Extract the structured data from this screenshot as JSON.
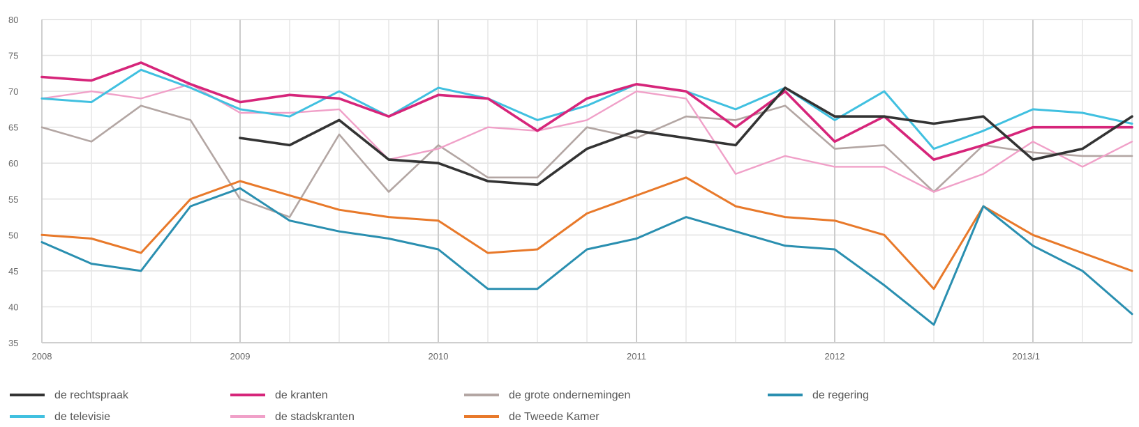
{
  "chart_data": {
    "type": "line",
    "title": "",
    "xlabel": "",
    "ylabel": "",
    "ylim": [
      35,
      80
    ],
    "yticks": [
      35,
      40,
      45,
      50,
      55,
      60,
      65,
      70,
      75,
      80
    ],
    "year_labels": [
      "2008",
      "2009",
      "2010",
      "2011",
      "2012",
      "2013/1"
    ],
    "x": [
      0,
      1,
      2,
      3,
      4,
      5,
      6,
      7,
      8,
      9,
      10,
      11,
      12,
      13,
      14,
      15,
      16,
      17,
      18,
      19,
      20,
      21,
      22
    ],
    "grid": true,
    "legend_position": "bottom",
    "series": [
      {
        "name": "de rechtspraak",
        "color": "#333333",
        "width": 3.6,
        "values": [
          null,
          null,
          null,
          null,
          63.5,
          62.5,
          66.0,
          60.5,
          60.0,
          57.5,
          57.0,
          62.0,
          64.5,
          63.5,
          62.5,
          70.5,
          66.5,
          66.5,
          65.5,
          66.5,
          60.5,
          62.0,
          66.5
        ]
      },
      {
        "name": "de kranten",
        "color": "#d6257a",
        "width": 3.6,
        "values": [
          72.0,
          71.5,
          74.0,
          71.0,
          68.5,
          69.5,
          69.0,
          66.5,
          69.5,
          69.0,
          64.5,
          69.0,
          71.0,
          70.0,
          65.0,
          70.0,
          63.0,
          66.5,
          60.5,
          62.5,
          65.0,
          65.0,
          65.0
        ]
      },
      {
        "name": "de grote ondernemingen",
        "color": "#b3a6a3",
        "width": 2.6,
        "values": [
          65.0,
          63.0,
          68.0,
          66.0,
          55.0,
          52.5,
          64.0,
          56.0,
          62.5,
          58.0,
          58.0,
          65.0,
          63.5,
          66.5,
          66.0,
          68.0,
          62.0,
          62.5,
          56.0,
          62.5,
          61.5,
          61.0,
          61.0
        ]
      },
      {
        "name": "de regering",
        "color": "#2a8fb0",
        "width": 3.0,
        "values": [
          49.0,
          46.0,
          45.0,
          54.0,
          56.5,
          52.0,
          50.5,
          49.5,
          48.0,
          42.5,
          42.5,
          48.0,
          49.5,
          52.5,
          50.5,
          48.5,
          48.0,
          43.0,
          37.5,
          54.0,
          48.5,
          45.0,
          39.0
        ]
      },
      {
        "name": "de televisie",
        "color": "#40c0e0",
        "width": 3.0,
        "values": [
          69.0,
          68.5,
          73.0,
          70.5,
          67.5,
          66.5,
          70.0,
          66.5,
          70.5,
          69.0,
          66.0,
          68.0,
          71.0,
          70.0,
          67.5,
          70.5,
          66.0,
          70.0,
          62.0,
          64.5,
          67.5,
          67.0,
          65.5
        ]
      },
      {
        "name": "de stadskranten",
        "color": "#f0a0c8",
        "width": 2.4,
        "values": [
          69.0,
          70.0,
          69.0,
          71.0,
          67.0,
          67.0,
          67.5,
          60.5,
          62.0,
          65.0,
          64.5,
          66.0,
          70.0,
          69.0,
          58.5,
          61.0,
          59.5,
          59.5,
          56.0,
          58.5,
          63.0,
          59.5,
          63.0
        ]
      },
      {
        "name": "de Tweede Kamer",
        "color": "#e8792a",
        "width": 3.0,
        "values": [
          50.0,
          49.5,
          47.5,
          55.0,
          57.5,
          55.5,
          53.5,
          52.5,
          52.0,
          47.5,
          48.0,
          53.0,
          55.5,
          58.0,
          54.0,
          52.5,
          52.0,
          50.0,
          42.5,
          54.0,
          50.0,
          47.5,
          45.0
        ]
      }
    ]
  }
}
